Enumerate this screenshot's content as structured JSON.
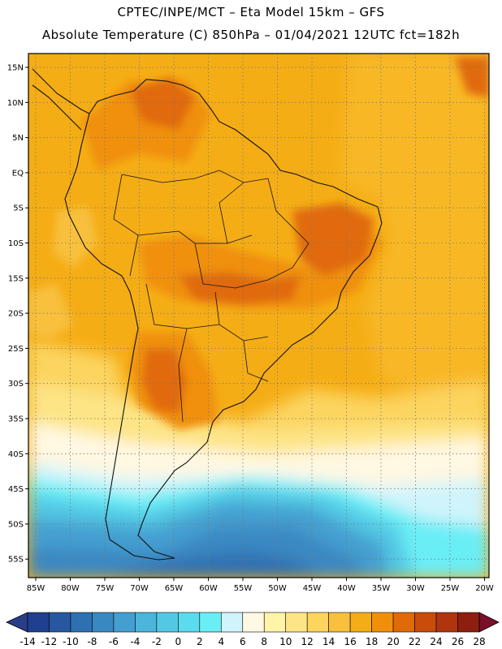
{
  "title_line1": "CPTEC/INPE/MCT –  Eta Model 15km – GFS",
  "title_line2": "Absolute Temperature (C) 850hPa – 01/04/2021 12UTC fct=182h",
  "lat_labels": [
    "15N",
    "10N",
    "5N",
    "EQ",
    "5S",
    "10S",
    "15S",
    "20S",
    "25S",
    "30S",
    "35S",
    "40S",
    "45S",
    "50S",
    "55S"
  ],
  "lon_labels": [
    "85W",
    "80W",
    "75W",
    "70W",
    "65W",
    "60W",
    "55W",
    "50W",
    "45W",
    "40W",
    "35W",
    "30W",
    "25W",
    "20W"
  ],
  "colorbar": {
    "labels": [
      "-14",
      "-12",
      "-10",
      "-8",
      "-6",
      "-4",
      "-2",
      "0",
      "2",
      "4",
      "6",
      "8",
      "10",
      "12",
      "14",
      "16",
      "18",
      "20",
      "22",
      "24",
      "26",
      "28"
    ],
    "colors": [
      "#1f3f8f",
      "#2658a0",
      "#2f70b2",
      "#3a88c2",
      "#449fd0",
      "#4bb5dc",
      "#52c8e4",
      "#5cdaee",
      "#6aeef6",
      "#d0f4fb",
      "#fff8e2",
      "#fff4a8",
      "#fde486",
      "#fcd45e",
      "#f8c03c",
      "#f5ad16",
      "#f0900a",
      "#e06a08",
      "#c94c0a",
      "#b0350e",
      "#8e1e10"
    ],
    "under_color": "#2a3d8a",
    "over_color": "#7a0f2a"
  }
}
